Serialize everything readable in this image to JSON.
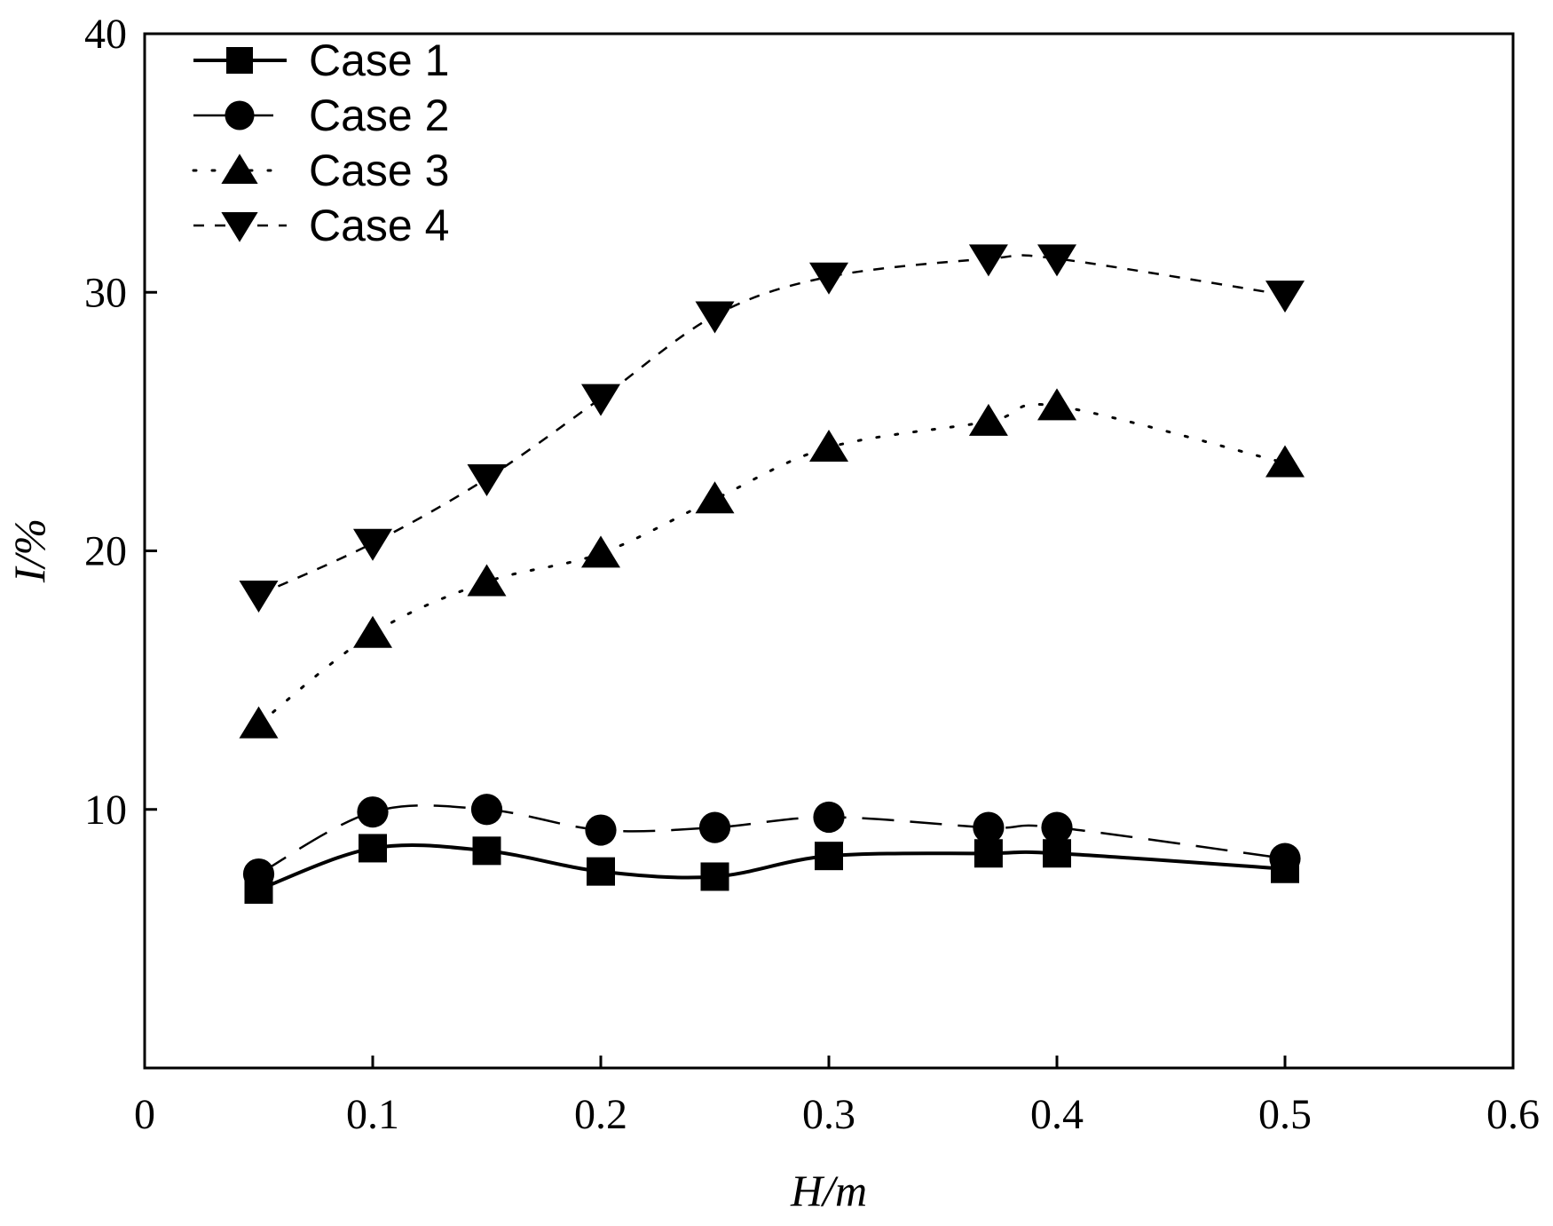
{
  "chart_data": {
    "type": "line",
    "xlabel": "H/m",
    "ylabel": "I/%",
    "xlim": [
      0,
      0.6
    ],
    "ylim": [
      0,
      40
    ],
    "xticks": [
      "0",
      "0.1",
      "0.2",
      "0.3",
      "0.4",
      "0.5",
      "0.6"
    ],
    "yticks": [
      "10",
      "20",
      "30",
      "40"
    ],
    "xtick_values": [
      0,
      0.1,
      0.2,
      0.3,
      0.4,
      0.5,
      0.6
    ],
    "ytick_values": [
      10,
      20,
      30,
      40
    ],
    "grid": false,
    "legend_position": "top-left",
    "series": [
      {
        "name": "Case 1",
        "marker": "square",
        "line_style": "solid-smooth",
        "x": [
          0.05,
          0.1,
          0.15,
          0.2,
          0.25,
          0.3,
          0.37,
          0.4,
          0.5
        ],
        "y": [
          6.9,
          8.5,
          8.4,
          7.6,
          7.4,
          8.2,
          8.3,
          8.3,
          7.7
        ]
      },
      {
        "name": "Case 2",
        "marker": "circle",
        "line_style": "long-dash",
        "x": [
          0.05,
          0.1,
          0.15,
          0.2,
          0.25,
          0.3,
          0.37,
          0.4,
          0.5
        ],
        "y": [
          7.5,
          9.9,
          10.0,
          9.2,
          9.3,
          9.7,
          9.3,
          9.3,
          8.1
        ]
      },
      {
        "name": "Case 3",
        "marker": "triangle-up",
        "line_style": "dotted",
        "x": [
          0.05,
          0.1,
          0.15,
          0.2,
          0.25,
          0.3,
          0.37,
          0.4,
          0.5
        ],
        "y": [
          13.3,
          16.8,
          18.8,
          19.9,
          22.0,
          24.0,
          25.0,
          25.6,
          23.4
        ]
      },
      {
        "name": "Case 4",
        "marker": "triangle-down",
        "line_style": "short-dash",
        "x": [
          0.05,
          0.1,
          0.15,
          0.2,
          0.25,
          0.3,
          0.37,
          0.4,
          0.5
        ],
        "y": [
          18.3,
          20.3,
          22.8,
          25.9,
          29.1,
          30.6,
          31.3,
          31.3,
          29.9
        ]
      }
    ]
  }
}
